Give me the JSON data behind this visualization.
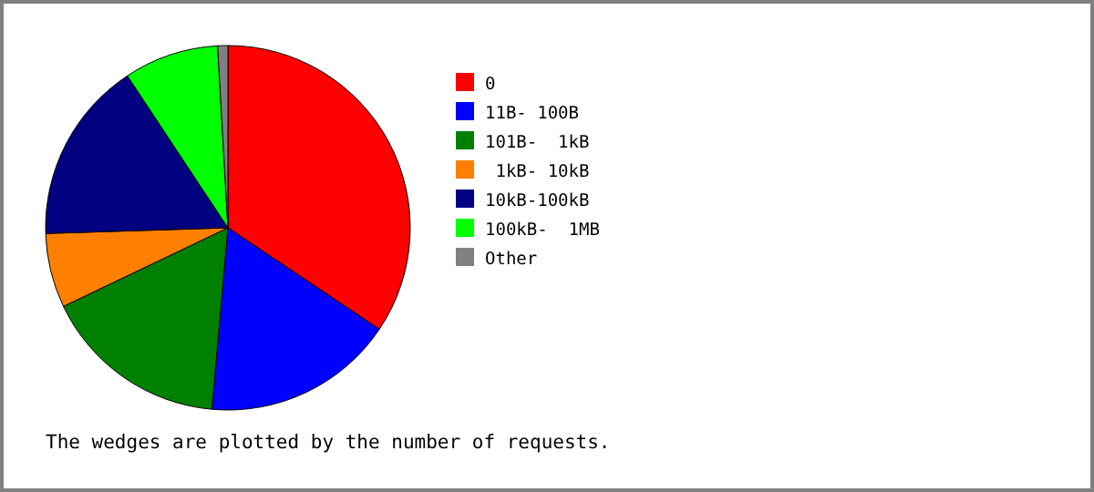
{
  "chart_data": {
    "type": "pie",
    "categories": [
      "0",
      "11B- 100B",
      "101B-  1kB",
      " 1kB- 10kB",
      "10kB-100kB",
      "100kB-  1MB",
      "Other"
    ],
    "values": [
      34.4,
      17.0,
      16.5,
      6.6,
      16.2,
      8.4,
      0.9
    ],
    "colors": [
      "#ff0000",
      "#0000ff",
      "#008000",
      "#ff8000",
      "#000080",
      "#00ff00",
      "#808080"
    ],
    "legend": "right",
    "annotations": [
      "The wedges are plotted by the number of requests."
    ]
  }
}
